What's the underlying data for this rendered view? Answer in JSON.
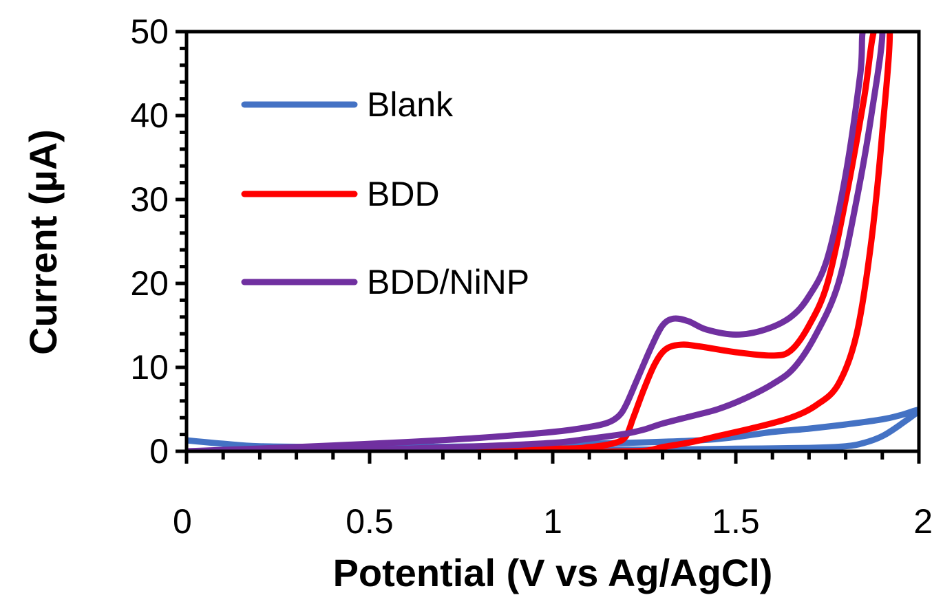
{
  "chart_data": {
    "type": "line",
    "title": "",
    "xlabel": "Potential (V vs Ag/AgCl)",
    "ylabel": "Current (µA)",
    "xlim": [
      0,
      2
    ],
    "ylim": [
      0,
      50
    ],
    "x_ticks": [
      0,
      0.5,
      1,
      1.5,
      2
    ],
    "x_tick_labels": [
      "0",
      "0.5",
      "1",
      "1.5",
      "2"
    ],
    "y_ticks": [
      0,
      10,
      20,
      30,
      40,
      50
    ],
    "y_tick_labels": [
      "0",
      "10",
      "20",
      "30",
      "40",
      "50"
    ],
    "grid": false,
    "legend_position": "top-left (inside)",
    "series": [
      {
        "name": "Blank",
        "color": "#4472C4",
        "points": [
          [
            0,
            1.3
          ],
          [
            0.1,
            0.9
          ],
          [
            0.2,
            0.6
          ],
          [
            0.4,
            0.5
          ],
          [
            0.6,
            0.5
          ],
          [
            0.8,
            0.6
          ],
          [
            1.0,
            0.8
          ],
          [
            1.2,
            1.0
          ],
          [
            1.4,
            1.3
          ],
          [
            1.5,
            1.7
          ],
          [
            1.6,
            2.3
          ],
          [
            1.7,
            2.7
          ],
          [
            1.8,
            3.2
          ],
          [
            1.9,
            3.8
          ],
          [
            1.95,
            4.3
          ],
          [
            2.0,
            4.9
          ],
          [
            1.95,
            3.2
          ],
          [
            1.9,
            1.8
          ],
          [
            1.85,
            1.0
          ],
          [
            1.8,
            0.6
          ],
          [
            1.7,
            0.4
          ],
          [
            1.5,
            0.3
          ],
          [
            1.3,
            0.2
          ],
          [
            1.1,
            0.2
          ],
          [
            0.8,
            0.1
          ],
          [
            0.5,
            0.1
          ],
          [
            0.2,
            0.0
          ],
          [
            0,
            0.0
          ]
        ]
      },
      {
        "name": "BDD",
        "color": "#FF0000",
        "points": [
          [
            0,
            0
          ],
          [
            0.5,
            0.1
          ],
          [
            1.0,
            0.3
          ],
          [
            1.1,
            0.5
          ],
          [
            1.17,
            1.0
          ],
          [
            1.2,
            1.8
          ],
          [
            1.22,
            4.0
          ],
          [
            1.25,
            7.5
          ],
          [
            1.28,
            10.5
          ],
          [
            1.31,
            12.2
          ],
          [
            1.35,
            12.7
          ],
          [
            1.4,
            12.5
          ],
          [
            1.5,
            11.8
          ],
          [
            1.6,
            11.4
          ],
          [
            1.65,
            12.0
          ],
          [
            1.7,
            15.0
          ],
          [
            1.75,
            20.0
          ],
          [
            1.8,
            30.0
          ],
          [
            1.85,
            42.0
          ],
          [
            1.88,
            50.5
          ],
          [
            1.92,
            50.5
          ],
          [
            1.9,
            38.0
          ],
          [
            1.87,
            25.0
          ],
          [
            1.83,
            14.0
          ],
          [
            1.78,
            8.0
          ],
          [
            1.72,
            5.5
          ],
          [
            1.65,
            4.0
          ],
          [
            1.55,
            2.8
          ],
          [
            1.45,
            1.8
          ],
          [
            1.38,
            1.1
          ],
          [
            1.3,
            0.5
          ],
          [
            1.26,
            0.1
          ],
          [
            1.2,
            0.0
          ],
          [
            1.0,
            -0.1
          ],
          [
            0.6,
            -0.1
          ],
          [
            0.3,
            -0.1
          ],
          [
            0,
            -0.1
          ]
        ]
      },
      {
        "name": "BDD/NiNP",
        "color": "#7030A0",
        "points": [
          [
            0,
            0
          ],
          [
            0.3,
            0.5
          ],
          [
            0.6,
            1.1
          ],
          [
            0.8,
            1.6
          ],
          [
            1.0,
            2.3
          ],
          [
            1.1,
            2.9
          ],
          [
            1.15,
            3.4
          ],
          [
            1.18,
            4.2
          ],
          [
            1.2,
            5.5
          ],
          [
            1.23,
            8.5
          ],
          [
            1.27,
            12.5
          ],
          [
            1.3,
            15.0
          ],
          [
            1.33,
            15.8
          ],
          [
            1.37,
            15.5
          ],
          [
            1.42,
            14.5
          ],
          [
            1.5,
            13.9
          ],
          [
            1.58,
            14.5
          ],
          [
            1.65,
            16.0
          ],
          [
            1.7,
            18.5
          ],
          [
            1.75,
            23.0
          ],
          [
            1.8,
            33.0
          ],
          [
            1.84,
            45.0
          ],
          [
            1.85,
            50.5
          ],
          [
            1.9,
            50.5
          ],
          [
            1.87,
            40.0
          ],
          [
            1.83,
            30.0
          ],
          [
            1.78,
            20.0
          ],
          [
            1.72,
            14.0
          ],
          [
            1.66,
            10.0
          ],
          [
            1.6,
            8.0
          ],
          [
            1.52,
            6.2
          ],
          [
            1.45,
            5.0
          ],
          [
            1.38,
            4.2
          ],
          [
            1.3,
            3.3
          ],
          [
            1.25,
            2.6
          ],
          [
            1.2,
            2.1
          ],
          [
            1.1,
            1.5
          ],
          [
            1.0,
            1.0
          ],
          [
            0.8,
            0.6
          ],
          [
            0.5,
            0.2
          ],
          [
            0.2,
            0.0
          ],
          [
            0,
            -0.1
          ]
        ]
      }
    ]
  }
}
